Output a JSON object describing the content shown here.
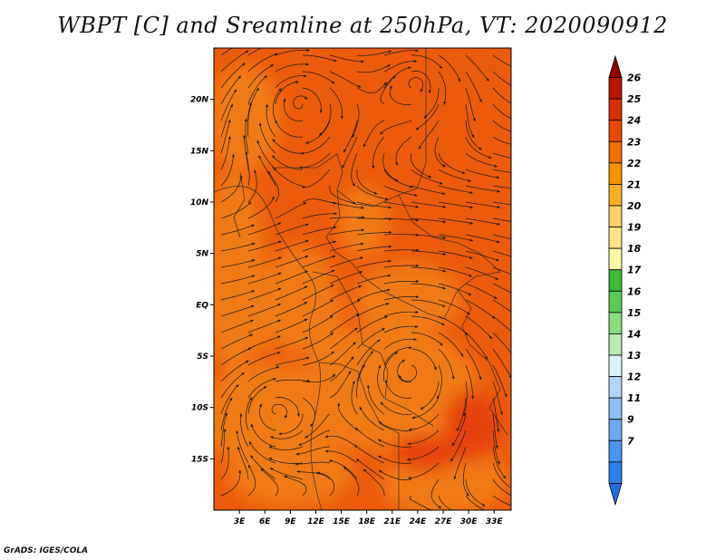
{
  "title": "WBPT [C] and Sreamline at 250hPa, VT: 2020090912",
  "credit": "GrADS: IGES/COLA",
  "chart_data": {
    "type": "heatmap",
    "variable": "Wet-bulb potential temperature with streamlines",
    "level": "250hPa",
    "valid_time": "2020090912",
    "xlim": [
      0,
      35
    ],
    "ylim": [
      -20,
      25
    ],
    "x_ticks": [
      {
        "value": 3,
        "label": "3E"
      },
      {
        "value": 6,
        "label": "6E"
      },
      {
        "value": 9,
        "label": "9E"
      },
      {
        "value": 12,
        "label": "12E"
      },
      {
        "value": 15,
        "label": "15E"
      },
      {
        "value": 18,
        "label": "18E"
      },
      {
        "value": 21,
        "label": "21E"
      },
      {
        "value": 24,
        "label": "24E"
      },
      {
        "value": 27,
        "label": "27E"
      },
      {
        "value": 30,
        "label": "30E"
      },
      {
        "value": 33,
        "label": "33E"
      }
    ],
    "y_ticks": [
      {
        "value": 20,
        "label": "20N"
      },
      {
        "value": 15,
        "label": "15N"
      },
      {
        "value": 10,
        "label": "10N"
      },
      {
        "value": 5,
        "label": "5N"
      },
      {
        "value": 0,
        "label": "EQ"
      },
      {
        "value": -5,
        "label": "5S"
      },
      {
        "value": -10,
        "label": "10S"
      },
      {
        "value": -15,
        "label": "15S"
      }
    ],
    "colorbar": {
      "labels": [
        "7",
        "9",
        "11",
        "12",
        "13",
        "14",
        "15",
        "16",
        "17",
        "18",
        "19",
        "20",
        "21",
        "22",
        "23",
        "24",
        "25",
        "26"
      ],
      "colors": [
        "#1f6de0",
        "#2e7fe8",
        "#4a95ef",
        "#6aa9f2",
        "#8ebff5",
        "#b3d6f8",
        "#def2fb",
        "#b8ecb0",
        "#88dd80",
        "#5cc956",
        "#3db63a",
        "#fbf8a8",
        "#fce48a",
        "#fbd06a",
        "#f9ae2a",
        "#f59200",
        "#ef6c00",
        "#e64a00",
        "#d43000",
        "#b81600",
        "#8c0000"
      ]
    },
    "field_colors": {
      "t23": "#f07a12",
      "t24": "#ec5a0c",
      "t25": "#e6420a"
    },
    "vortices": [
      {
        "name": "north-west anticyclone",
        "lon": 10,
        "lat": 20
      },
      {
        "name": "north-east anticyclone",
        "lon": 24,
        "lat": 22
      },
      {
        "name": "central-south anticyclone",
        "lon": 23,
        "lat": -6
      },
      {
        "name": "south-west anticyclone",
        "lon": 7,
        "lat": -10
      }
    ],
    "grid": false,
    "legend": "right"
  }
}
